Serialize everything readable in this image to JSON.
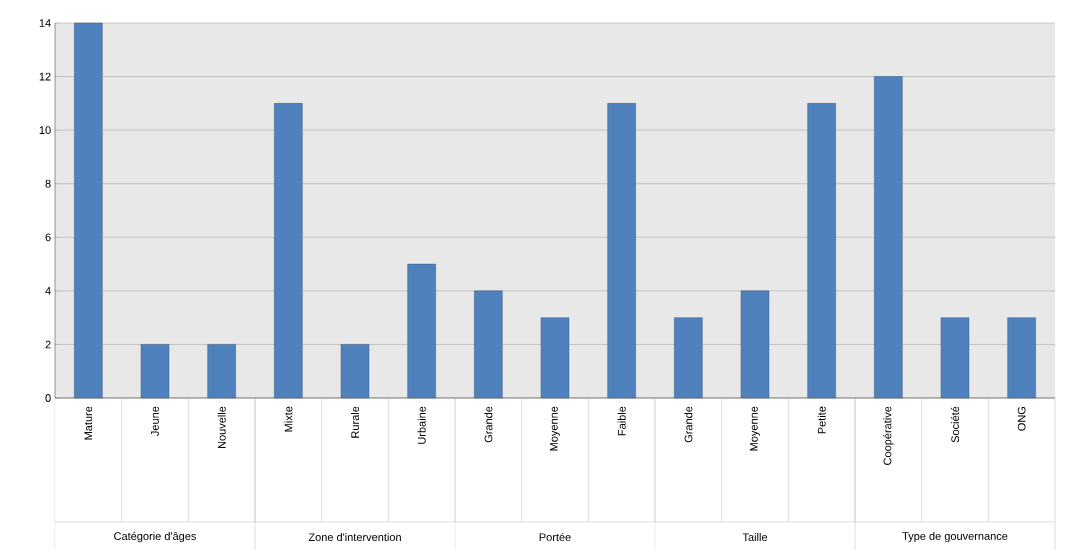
{
  "chart_data": {
    "type": "bar",
    "categories": [
      "Mature",
      "Jeune",
      "Nouvelle",
      "Mixte",
      "Rurale",
      "Urbaine",
      "Grande",
      "Moyenne",
      "Faible",
      "Grande",
      "Moyenne",
      "Petite",
      "Coopérative",
      "Société",
      "ONG"
    ],
    "values": [
      14,
      2,
      2,
      11,
      2,
      5,
      4,
      3,
      11,
      3,
      4,
      11,
      12,
      3,
      3
    ],
    "color": "#4f81bd",
    "ylim": [
      0,
      14
    ],
    "yticks": [
      0,
      2,
      4,
      6,
      8,
      10,
      12,
      14
    ],
    "grid": "y",
    "annotations": [
      "Catégorie d'âges",
      "Zone d'intervention",
      "Portée",
      "Taille",
      "Type de gouvernance"
    ]
  }
}
